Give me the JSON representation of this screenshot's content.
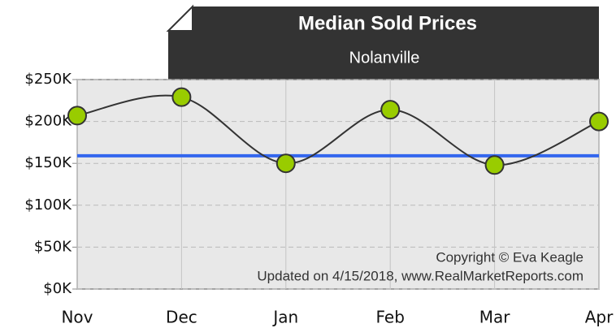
{
  "chart_data": {
    "type": "line",
    "title": "Median Sold Prices",
    "subtitle": "Nolanville",
    "annotations": [
      "Copyright © Eva Keagle",
      "Updated on 4/15/2018, www.RealMarketReports.com"
    ],
    "categories": [
      "Nov",
      "Dec",
      "Jan",
      "Feb",
      "Mar",
      "Apr"
    ],
    "series": [
      {
        "color": "#333333",
        "marker_color": "#99cc00",
        "values": [
          207,
          229,
          150,
          214,
          148,
          200
        ]
      }
    ],
    "reference_line": {
      "value": 159,
      "color": "#3366ee"
    },
    "ylim": [
      0,
      250
    ],
    "yticks": [
      {
        "value": 0,
        "label": "$0K"
      },
      {
        "value": 50,
        "label": "$50K"
      },
      {
        "value": 100,
        "label": "$100K"
      },
      {
        "value": 150,
        "label": "$150K"
      },
      {
        "value": 200,
        "label": "$200K"
      },
      {
        "value": 250,
        "label": "$250K"
      }
    ],
    "grid": true
  }
}
